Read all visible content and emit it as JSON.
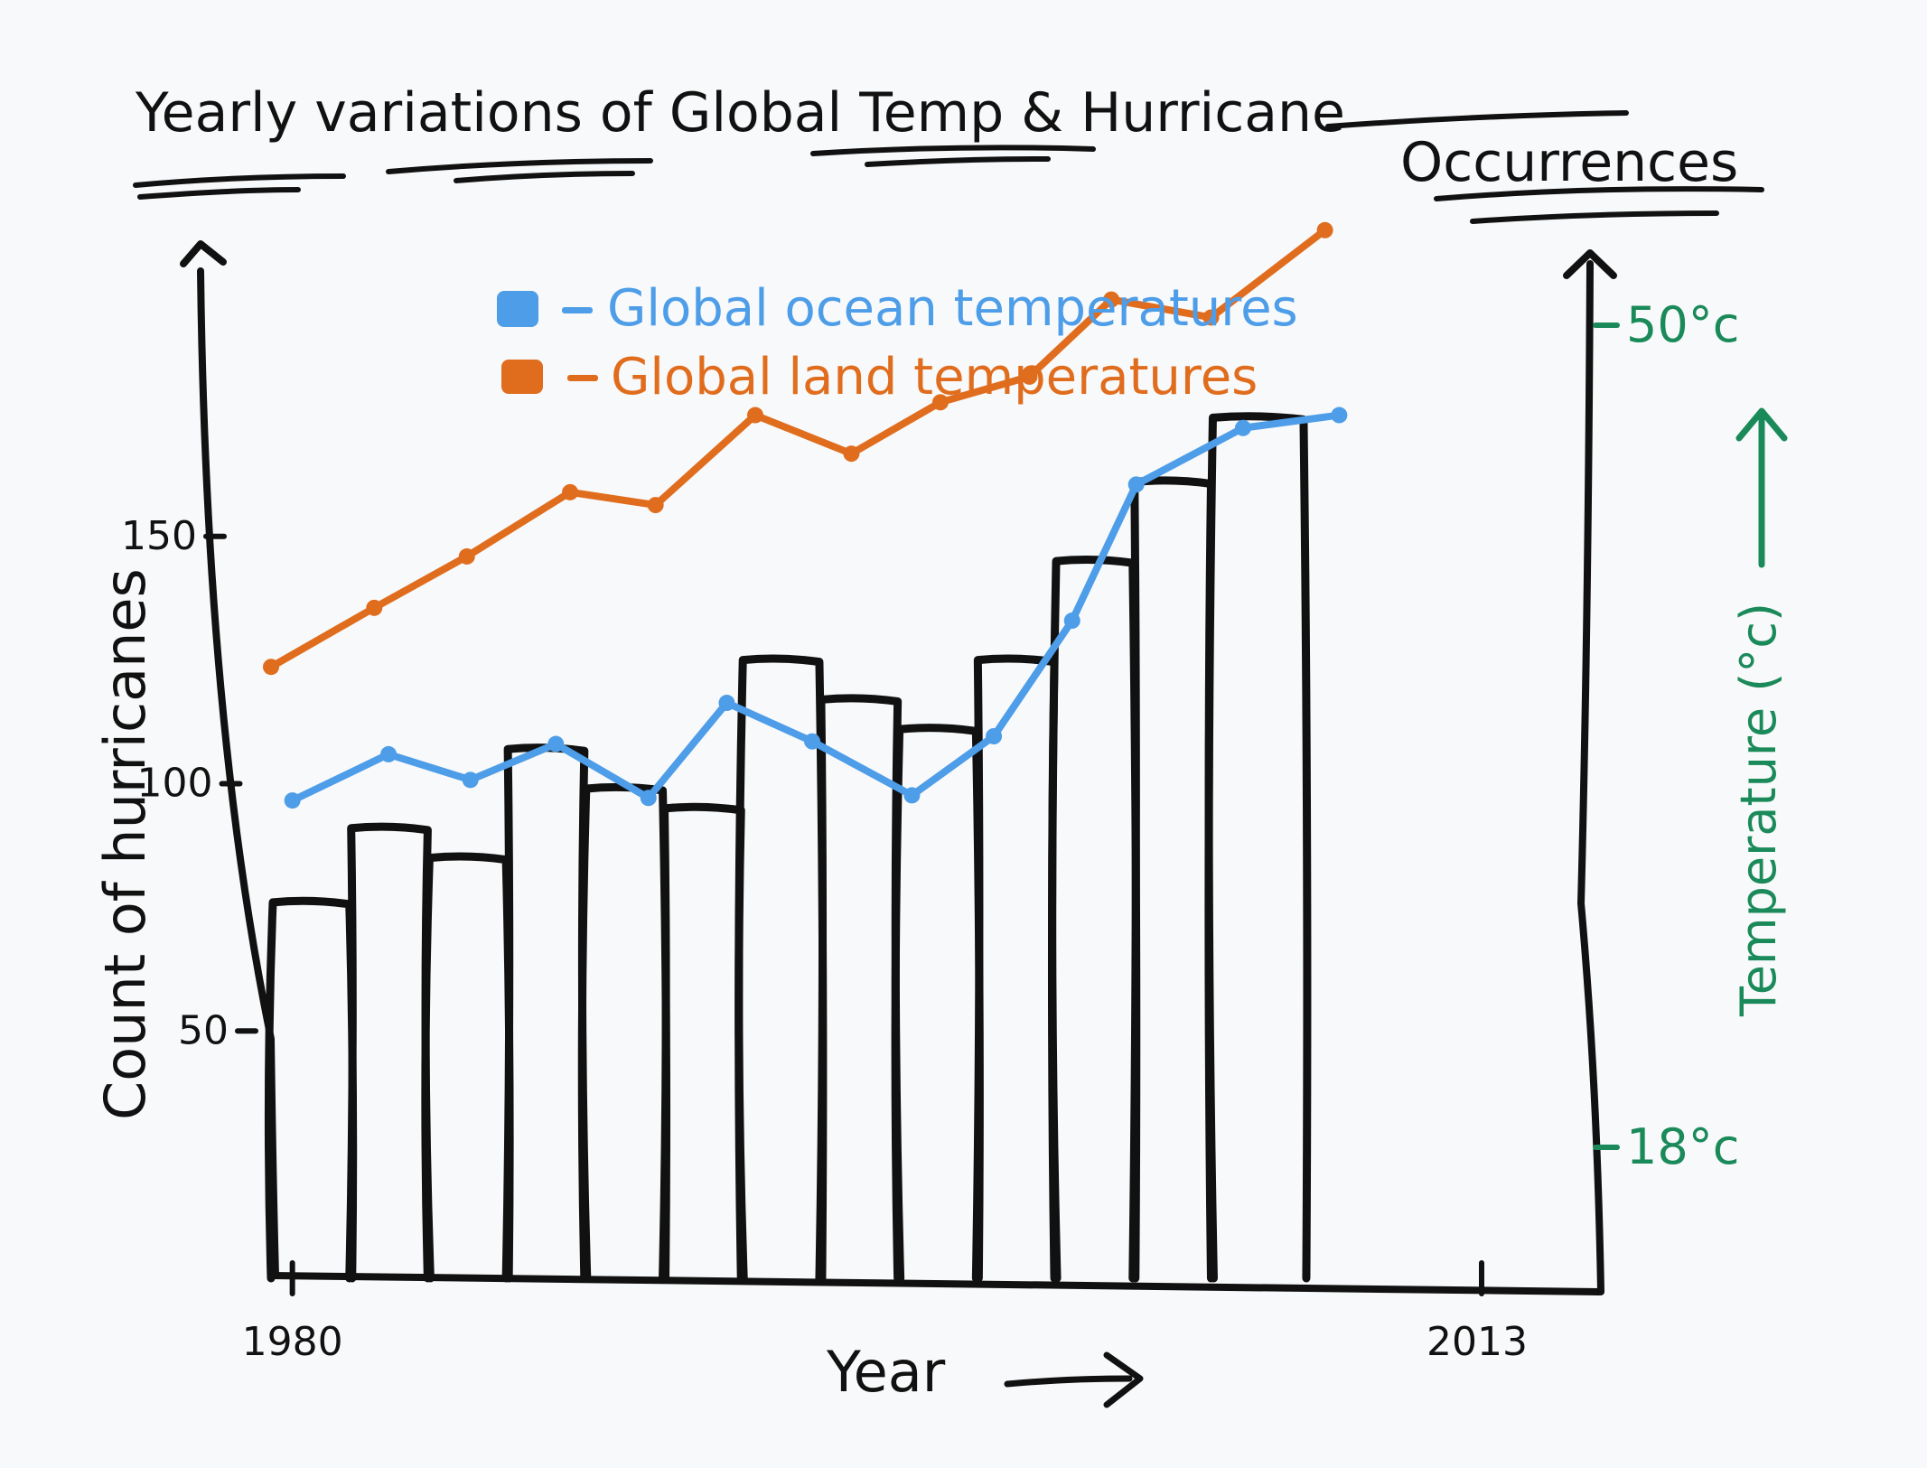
{
  "chart_data": {
    "type": "bar",
    "title": "Yearly variations of Global Temp & Hurricane Occurrences",
    "title_line1": "Yearly variations of Global Temp & Hurricane",
    "title_line2": "Occurrences",
    "xlabel": "Year",
    "ylabel": "Count of hurricanes",
    "ylabel_right": "Temperature (°c)",
    "x_ticks": [
      "1980",
      "2013"
    ],
    "y_ticks": [
      50,
      100,
      150
    ],
    "y_tick_labels": [
      "50",
      "100",
      "150"
    ],
    "ylim": [
      0,
      200
    ],
    "ylim_right": [
      10,
      58
    ],
    "right_ticks": [
      {
        "label": "50°c",
        "value": 50
      },
      {
        "label": "18°c",
        "value": 18
      }
    ],
    "x_range": [
      1979,
      2013
    ],
    "bars": [
      {
        "x0": 1979.0,
        "x1": 1981.2,
        "value": 76
      },
      {
        "x0": 1981.2,
        "x1": 1983.4,
        "value": 91
      },
      {
        "x0": 1983.4,
        "x1": 1985.6,
        "value": 85
      },
      {
        "x0": 1985.6,
        "x1": 1987.8,
        "value": 107
      },
      {
        "x0": 1987.8,
        "x1": 1990.0,
        "value": 99
      },
      {
        "x0": 1990.0,
        "x1": 1992.2,
        "value": 95
      },
      {
        "x0": 1992.2,
        "x1": 1994.4,
        "value": 125
      },
      {
        "x0": 1994.4,
        "x1": 1996.6,
        "value": 117
      },
      {
        "x0": 1996.6,
        "x1": 1998.8,
        "value": 111
      },
      {
        "x0": 1998.8,
        "x1": 2001.0,
        "value": 125
      },
      {
        "x0": 2001.0,
        "x1": 2003.2,
        "value": 145
      },
      {
        "x0": 2003.2,
        "x1": 2005.4,
        "value": 161
      },
      {
        "x0": 2005.4,
        "x1": 2008.0,
        "value": 174
      }
    ],
    "series": [
      {
        "name": "Global ocean temperatures",
        "color": "#4d9de8",
        "axis": "right",
        "x": [
          1979.6,
          1982.3,
          1984.6,
          1987.0,
          1989.6,
          1991.8,
          1994.2,
          1997.0,
          1999.3,
          2001.5,
          2003.3,
          2006.3,
          2009.0
        ],
        "values": [
          31.5,
          33.3,
          32.3,
          33.7,
          31.6,
          35.3,
          33.8,
          31.7,
          34.0,
          38.5,
          43.8,
          46.0,
          46.5
        ]
      },
      {
        "name": "Global land temperatures",
        "color": "#e06d1e",
        "axis": "right",
        "x": [
          1979.0,
          1981.9,
          1984.5,
          1987.4,
          1989.8,
          1992.6,
          1995.3,
          1997.8,
          2000.3,
          2002.6,
          2005.4,
          2008.6
        ],
        "values": [
          36.7,
          39.0,
          41.0,
          43.5,
          43.0,
          46.5,
          45.0,
          47.0,
          48.0,
          51.0,
          50.3,
          53.7
        ]
      }
    ],
    "legend": [
      {
        "label": "Global ocean temperatures",
        "color": "#4d9de8"
      },
      {
        "label": "Global land temperatures",
        "color": "#e06d1e"
      }
    ],
    "legend_position": "top-center"
  }
}
